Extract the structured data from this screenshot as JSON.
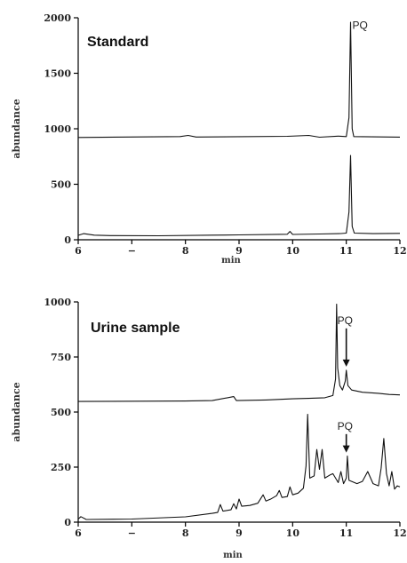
{
  "chart_data": [
    {
      "type": "line",
      "title": "Standard",
      "xlabel": "min",
      "ylabel": "abundance",
      "xlim": [
        6,
        12
      ],
      "ylim": [
        0,
        2000
      ],
      "x_ticks": [
        "6",
        "−",
        "8",
        "9",
        "10",
        "11",
        "12"
      ],
      "y_ticks": [
        "0",
        "500",
        "1000",
        "1500",
        "2000"
      ],
      "grid": false,
      "colors": {
        "trace": "#111111",
        "axis": "#000000"
      },
      "series": [
        {
          "baseline": 920,
          "points": [
            [
              6,
              922
            ],
            [
              7.9,
              930
            ],
            [
              8.05,
              940
            ],
            [
              8.2,
              926
            ],
            [
              9.9,
              932
            ],
            [
              10.3,
              940
            ],
            [
              10.5,
              924
            ],
            [
              10.85,
              934
            ],
            [
              11.0,
              930
            ],
            [
              11.05,
              1100
            ],
            [
              11.08,
              1960
            ],
            [
              11.11,
              1000
            ],
            [
              11.14,
              930
            ],
            [
              12,
              925
            ]
          ]
        },
        {
          "baseline": 30,
          "points": [
            [
              6,
              40
            ],
            [
              6.1,
              55
            ],
            [
              6.3,
              42
            ],
            [
              6.6,
              38
            ],
            [
              7.5,
              36
            ],
            [
              8.5,
              42
            ],
            [
              9.0,
              44
            ],
            [
              9.9,
              50
            ],
            [
              9.95,
              75
            ],
            [
              10.0,
              48
            ],
            [
              10.5,
              52
            ],
            [
              10.9,
              56
            ],
            [
              11.0,
              60
            ],
            [
              11.05,
              250
            ],
            [
              11.08,
              760
            ],
            [
              11.11,
              120
            ],
            [
              11.15,
              60
            ],
            [
              11.5,
              55
            ],
            [
              12,
              58
            ]
          ]
        }
      ],
      "annotations": [
        {
          "text": "PQ",
          "x": 11.08,
          "y": 1900,
          "arrow": false
        }
      ]
    },
    {
      "type": "line",
      "title": "Urine sample",
      "xlabel": "min",
      "ylabel": "abundance",
      "xlim": [
        6,
        12
      ],
      "ylim": [
        0,
        1000
      ],
      "x_ticks": [
        "6",
        "−",
        "8",
        "9",
        "10",
        "11",
        "12"
      ],
      "y_ticks": [
        "0",
        "250",
        "500",
        "750",
        "1000"
      ],
      "grid": false,
      "colors": {
        "trace": "#111111",
        "axis": "#000000"
      },
      "series": [
        {
          "baseline": 545,
          "points": [
            [
              6,
              548
            ],
            [
              8.0,
              550
            ],
            [
              8.5,
              552
            ],
            [
              8.9,
              570
            ],
            [
              8.95,
              552
            ],
            [
              9.5,
              555
            ],
            [
              10.0,
              560
            ],
            [
              10.3,
              562
            ],
            [
              10.6,
              565
            ],
            [
              10.75,
              575
            ],
            [
              10.8,
              650
            ],
            [
              10.82,
              990
            ],
            [
              10.84,
              700
            ],
            [
              10.88,
              620
            ],
            [
              10.93,
              600
            ],
            [
              10.98,
              640
            ],
            [
              11.0,
              690
            ],
            [
              11.03,
              620
            ],
            [
              11.1,
              600
            ],
            [
              11.3,
              590
            ],
            [
              11.6,
              585
            ],
            [
              11.8,
              580
            ],
            [
              12,
              578
            ]
          ]
        },
        {
          "baseline": 10,
          "points": [
            [
              6,
              14
            ],
            [
              6.05,
              25
            ],
            [
              6.15,
              12
            ],
            [
              7.0,
              14
            ],
            [
              8.0,
              24
            ],
            [
              8.5,
              40
            ],
            [
              8.6,
              44
            ],
            [
              8.65,
              80
            ],
            [
              8.7,
              50
            ],
            [
              8.85,
              56
            ],
            [
              8.9,
              84
            ],
            [
              8.95,
              60
            ],
            [
              9.0,
              105
            ],
            [
              9.05,
              72
            ],
            [
              9.2,
              76
            ],
            [
              9.35,
              86
            ],
            [
              9.45,
              124
            ],
            [
              9.5,
              96
            ],
            [
              9.6,
              106
            ],
            [
              9.7,
              120
            ],
            [
              9.75,
              144
            ],
            [
              9.8,
              112
            ],
            [
              9.9,
              116
            ],
            [
              9.95,
              160
            ],
            [
              10.0,
              124
            ],
            [
              10.1,
              132
            ],
            [
              10.2,
              154
            ],
            [
              10.25,
              256
            ],
            [
              10.28,
              490
            ],
            [
              10.32,
              200
            ],
            [
              10.4,
              210
            ],
            [
              10.45,
              330
            ],
            [
              10.5,
              240
            ],
            [
              10.55,
              330
            ],
            [
              10.6,
              200
            ],
            [
              10.7,
              215
            ],
            [
              10.75,
              220
            ],
            [
              10.8,
              200
            ],
            [
              10.85,
              180
            ],
            [
              10.9,
              230
            ],
            [
              10.95,
              175
            ],
            [
              11.0,
              200
            ],
            [
              11.02,
              300
            ],
            [
              11.05,
              190
            ],
            [
              11.2,
              175
            ],
            [
              11.3,
              185
            ],
            [
              11.4,
              230
            ],
            [
              11.5,
              175
            ],
            [
              11.6,
              165
            ],
            [
              11.65,
              245
            ],
            [
              11.7,
              380
            ],
            [
              11.75,
              220
            ],
            [
              11.8,
              165
            ],
            [
              11.85,
              230
            ],
            [
              11.9,
              150
            ],
            [
              11.95,
              165
            ],
            [
              12,
              160
            ]
          ]
        }
      ],
      "annotations": [
        {
          "text": "PQ",
          "x": 11.0,
          "y": 900,
          "arrow": true,
          "arrow_to": 690
        },
        {
          "text": "PQ",
          "x": 11.0,
          "y": 420,
          "arrow": true,
          "arrow_to": 300
        }
      ]
    }
  ]
}
